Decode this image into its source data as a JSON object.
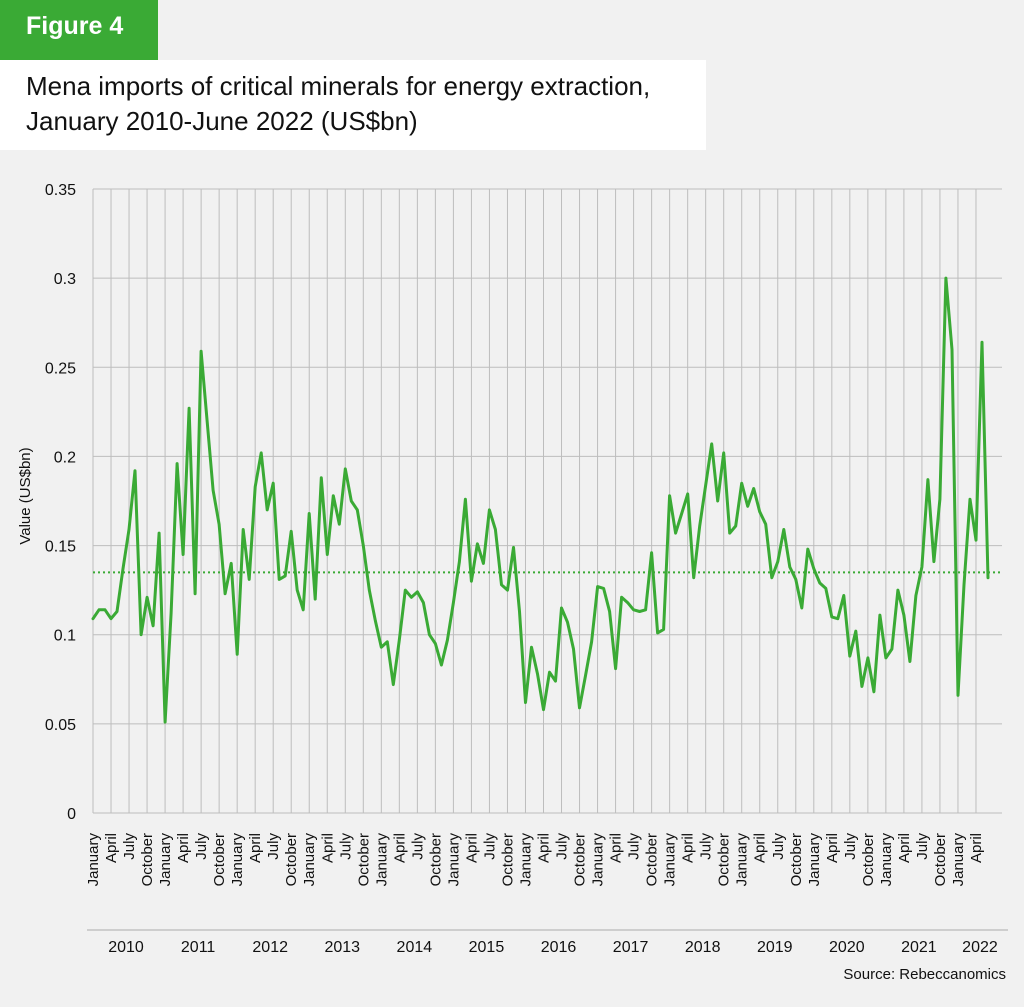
{
  "figure_label": "Figure 4",
  "title_line1": "Mena imports of critical minerals for energy extraction,",
  "title_line2": "January 2010-June 2022 (US$bn)",
  "source": "Source: Rebeccanomics",
  "colors": {
    "line": "#3aaa35",
    "badge": "#3aaa35",
    "grid": "#bdbdbd",
    "text": "#111111"
  },
  "chart_data": {
    "type": "line",
    "title": "Mena imports of critical minerals for energy extraction, January 2010-June 2022 (US$bn)",
    "xlabel": "",
    "ylabel": "Value (US$bn)",
    "ylim": [
      0,
      0.35
    ],
    "yticks": [
      "0",
      "0.05",
      "0.1",
      "0.15",
      "0.2",
      "0.25",
      "0.3",
      "0.35"
    ],
    "grid": true,
    "month_tick_labels": [
      "January",
      "April",
      "July",
      "October"
    ],
    "years": [
      "2010",
      "2011",
      "2012",
      "2013",
      "2014",
      "2015",
      "2016",
      "2017",
      "2018",
      "2019",
      "2020",
      "2021",
      "2022"
    ],
    "average_line": 0.135,
    "series": [
      {
        "values": [
          0.109,
          0.114,
          0.114,
          0.109,
          0.113,
          0.137,
          0.159,
          0.192,
          0.1,
          0.121,
          0.105,
          0.157,
          0.051,
          0.112,
          0.196,
          0.145,
          0.227,
          0.123,
          0.259,
          0.22,
          0.181,
          0.162,
          0.123,
          0.14,
          0.089,
          0.159,
          0.131,
          0.183,
          0.202,
          0.17,
          0.185,
          0.131,
          0.133,
          0.158,
          0.125,
          0.114,
          0.168,
          0.12,
          0.188,
          0.145,
          0.178,
          0.162,
          0.193,
          0.175,
          0.17,
          0.15,
          0.125,
          0.108,
          0.093,
          0.096,
          0.072,
          0.097,
          0.125,
          0.121,
          0.124,
          0.118,
          0.1,
          0.095,
          0.083,
          0.097,
          0.118,
          0.141,
          0.176,
          0.13,
          0.151,
          0.14,
          0.17,
          0.159,
          0.128,
          0.125,
          0.149,
          0.113,
          0.062,
          0.093,
          0.078,
          0.058,
          0.079,
          0.074,
          0.115,
          0.107,
          0.092,
          0.059,
          0.077,
          0.096,
          0.127,
          0.126,
          0.113,
          0.081,
          0.121,
          0.118,
          0.114,
          0.113,
          0.114,
          0.146,
          0.101,
          0.103,
          0.178,
          0.157,
          0.168,
          0.179,
          0.132,
          0.161,
          0.184,
          0.207,
          0.175,
          0.202,
          0.157,
          0.161,
          0.185,
          0.172,
          0.182,
          0.169,
          0.162,
          0.132,
          0.141,
          0.159,
          0.138,
          0.131,
          0.115,
          0.148,
          0.137,
          0.129,
          0.126,
          0.11,
          0.109,
          0.122,
          0.088,
          0.102,
          0.071,
          0.087,
          0.068,
          0.111,
          0.087,
          0.092,
          0.125,
          0.111,
          0.085,
          0.122,
          0.138,
          0.187,
          0.141,
          0.176,
          0.3,
          0.26,
          0.066,
          0.128,
          0.176,
          0.153,
          0.264,
          0.132
        ]
      }
    ]
  }
}
